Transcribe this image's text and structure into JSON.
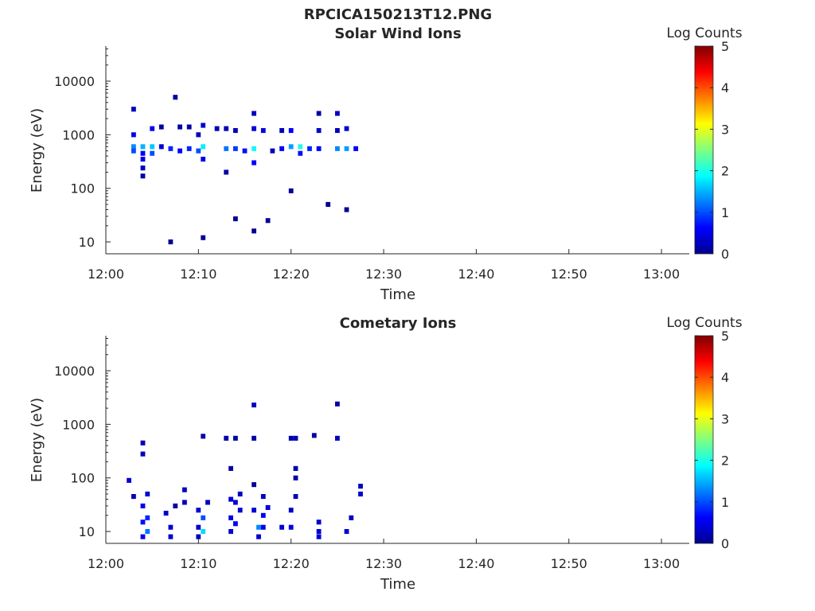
{
  "figure_title": "RPCICA150213T12.PNG",
  "chart_data": [
    {
      "type": "heatmap",
      "title": "Solar Wind Ions",
      "xlabel": "Time",
      "ylabel": "Energy (eV)",
      "yscale": "log",
      "ylim": [
        6,
        45000
      ],
      "xlim": [
        "12:00",
        "13:03"
      ],
      "x_ticks": [
        "12:00",
        "12:10",
        "12:20",
        "12:30",
        "12:40",
        "12:50",
        "13:00"
      ],
      "y_ticks": [
        "10",
        "100",
        "1000",
        "10000"
      ],
      "colorbar": {
        "label": "Log Counts",
        "range": [
          0,
          5
        ],
        "ticks": [
          "0",
          "1",
          "2",
          "3",
          "4",
          "5"
        ],
        "colormap": "jet"
      },
      "cells": [
        {
          "t": "12:03",
          "e": 3000,
          "v": 0.3
        },
        {
          "t": "12:03",
          "e": 1000,
          "v": 0.5
        },
        {
          "t": "12:03",
          "e": 600,
          "v": 1.3
        },
        {
          "t": "12:03",
          "e": 500,
          "v": 1.0
        },
        {
          "t": "12:04",
          "e": 600,
          "v": 1.5
        },
        {
          "t": "12:04",
          "e": 450,
          "v": 0.6
        },
        {
          "t": "12:04",
          "e": 350,
          "v": 0.5
        },
        {
          "t": "12:04",
          "e": 240,
          "v": 0.3
        },
        {
          "t": "12:04",
          "e": 170,
          "v": 0.2
        },
        {
          "t": "12:05",
          "e": 600,
          "v": 1.6
        },
        {
          "t": "12:05",
          "e": 450,
          "v": 1.0
        },
        {
          "t": "12:05",
          "e": 1300,
          "v": 0.5
        },
        {
          "t": "12:06",
          "e": 600,
          "v": 0.4
        },
        {
          "t": "12:06",
          "e": 1400,
          "v": 0.2
        },
        {
          "t": "12:07",
          "e": 550,
          "v": 0.8
        },
        {
          "t": "12:07",
          "e": 10,
          "v": 0.1
        },
        {
          "t": "12:07.5",
          "e": 5000,
          "v": 0.2
        },
        {
          "t": "12:08",
          "e": 1400,
          "v": 0.2
        },
        {
          "t": "12:08",
          "e": 500,
          "v": 0.6
        },
        {
          "t": "12:09",
          "e": 550,
          "v": 0.8
        },
        {
          "t": "12:09",
          "e": 1400,
          "v": 0.2
        },
        {
          "t": "12:10",
          "e": 500,
          "v": 1.0
        },
        {
          "t": "12:10",
          "e": 1000,
          "v": 0.3
        },
        {
          "t": "12:10.5",
          "e": 600,
          "v": 1.8
        },
        {
          "t": "12:10.5",
          "e": 1500,
          "v": 0.4
        },
        {
          "t": "12:10.5",
          "e": 350,
          "v": 0.5
        },
        {
          "t": "12:10.5",
          "e": 12,
          "v": 0.1
        },
        {
          "t": "12:12",
          "e": 1300,
          "v": 0.3
        },
        {
          "t": "12:13",
          "e": 550,
          "v": 1.2
        },
        {
          "t": "12:13",
          "e": 1300,
          "v": 0.3
        },
        {
          "t": "12:13",
          "e": 200,
          "v": 0.2
        },
        {
          "t": "12:14",
          "e": 550,
          "v": 0.9
        },
        {
          "t": "12:14",
          "e": 1200,
          "v": 0.3
        },
        {
          "t": "12:14",
          "e": 27,
          "v": 0.1
        },
        {
          "t": "12:15",
          "e": 500,
          "v": 0.7
        },
        {
          "t": "12:16",
          "e": 550,
          "v": 1.9
        },
        {
          "t": "12:16",
          "e": 1300,
          "v": 0.4
        },
        {
          "t": "12:16",
          "e": 2500,
          "v": 0.3
        },
        {
          "t": "12:16",
          "e": 300,
          "v": 0.6
        },
        {
          "t": "12:16",
          "e": 16,
          "v": 0.1
        },
        {
          "t": "12:17",
          "e": 1200,
          "v": 0.5
        },
        {
          "t": "12:17.5",
          "e": 25,
          "v": 0.1
        },
        {
          "t": "12:18",
          "e": 500,
          "v": 0.3
        },
        {
          "t": "12:19",
          "e": 550,
          "v": 0.6
        },
        {
          "t": "12:19",
          "e": 1200,
          "v": 0.3
        },
        {
          "t": "12:20",
          "e": 600,
          "v": 1.4
        },
        {
          "t": "12:20",
          "e": 1200,
          "v": 0.6
        },
        {
          "t": "12:20",
          "e": 90,
          "v": 0.1
        },
        {
          "t": "12:21",
          "e": 600,
          "v": 2.0
        },
        {
          "t": "12:21",
          "e": 450,
          "v": 0.7
        },
        {
          "t": "12:22",
          "e": 550,
          "v": 0.8
        },
        {
          "t": "12:23",
          "e": 550,
          "v": 0.6
        },
        {
          "t": "12:23",
          "e": 1200,
          "v": 0.4
        },
        {
          "t": "12:23",
          "e": 2500,
          "v": 0.2
        },
        {
          "t": "12:24",
          "e": 50,
          "v": 0.1
        },
        {
          "t": "12:25",
          "e": 550,
          "v": 1.3
        },
        {
          "t": "12:25",
          "e": 2500,
          "v": 0.3
        },
        {
          "t": "12:25",
          "e": 1200,
          "v": 0.3
        },
        {
          "t": "12:26",
          "e": 550,
          "v": 1.4
        },
        {
          "t": "12:26",
          "e": 1300,
          "v": 0.4
        },
        {
          "t": "12:26",
          "e": 40,
          "v": 0.1
        },
        {
          "t": "12:27",
          "e": 550,
          "v": 0.6
        }
      ]
    },
    {
      "type": "heatmap",
      "title": "Cometary Ions",
      "xlabel": "Time",
      "ylabel": "Energy (eV)",
      "yscale": "log",
      "ylim": [
        6,
        45000
      ],
      "xlim": [
        "12:00",
        "13:03"
      ],
      "x_ticks": [
        "12:00",
        "12:10",
        "12:20",
        "12:30",
        "12:40",
        "12:50",
        "13:00"
      ],
      "y_ticks": [
        "10",
        "100",
        "1000",
        "10000"
      ],
      "colorbar": {
        "label": "Log Counts",
        "range": [
          0,
          5
        ],
        "ticks": [
          "0",
          "1",
          "2",
          "3",
          "4",
          "5"
        ],
        "colormap": "jet"
      },
      "cells": [
        {
          "t": "12:02.5",
          "e": 90,
          "v": 0.4
        },
        {
          "t": "12:03",
          "e": 45,
          "v": 0.3
        },
        {
          "t": "12:04",
          "e": 8,
          "v": 0.5
        },
        {
          "t": "12:04",
          "e": 15,
          "v": 0.7
        },
        {
          "t": "12:04",
          "e": 30,
          "v": 0.5
        },
        {
          "t": "12:04",
          "e": 450,
          "v": 0.3
        },
        {
          "t": "12:04",
          "e": 280,
          "v": 0.3
        },
        {
          "t": "12:04.5",
          "e": 10,
          "v": 1.2
        },
        {
          "t": "12:04.5",
          "e": 18,
          "v": 0.8
        },
        {
          "t": "12:04.5",
          "e": 50,
          "v": 0.4
        },
        {
          "t": "12:06.5",
          "e": 22,
          "v": 0.4
        },
        {
          "t": "12:07",
          "e": 8,
          "v": 0.4
        },
        {
          "t": "12:07",
          "e": 12,
          "v": 0.4
        },
        {
          "t": "12:07.5",
          "e": 30,
          "v": 0.2
        },
        {
          "t": "12:08.5",
          "e": 60,
          "v": 0.3
        },
        {
          "t": "12:08.5",
          "e": 35,
          "v": 0.3
        },
        {
          "t": "12:10",
          "e": 8,
          "v": 0.3
        },
        {
          "t": "12:10",
          "e": 12,
          "v": 0.4
        },
        {
          "t": "12:10",
          "e": 25,
          "v": 0.4
        },
        {
          "t": "12:10.5",
          "e": 10,
          "v": 1.7
        },
        {
          "t": "12:10.5",
          "e": 18,
          "v": 1.0
        },
        {
          "t": "12:10.5",
          "e": 600,
          "v": 0.2
        },
        {
          "t": "12:11",
          "e": 35,
          "v": 0.3
        },
        {
          "t": "12:13",
          "e": 550,
          "v": 0.2
        },
        {
          "t": "12:13.5",
          "e": 150,
          "v": 0.2
        },
        {
          "t": "12:13.5",
          "e": 10,
          "v": 0.4
        },
        {
          "t": "12:13.5",
          "e": 18,
          "v": 0.5
        },
        {
          "t": "12:13.5",
          "e": 40,
          "v": 0.4
        },
        {
          "t": "12:14",
          "e": 14,
          "v": 0.6
        },
        {
          "t": "12:14",
          "e": 35,
          "v": 0.4
        },
        {
          "t": "12:14",
          "e": 550,
          "v": 0.2
        },
        {
          "t": "12:14.5",
          "e": 50,
          "v": 0.3
        },
        {
          "t": "12:14.5",
          "e": 25,
          "v": 0.4
        },
        {
          "t": "12:16",
          "e": 25,
          "v": 0.4
        },
        {
          "t": "12:16",
          "e": 2300,
          "v": 0.3
        },
        {
          "t": "12:16",
          "e": 550,
          "v": 0.2
        },
        {
          "t": "12:16",
          "e": 75,
          "v": 0.1
        },
        {
          "t": "12:16.5",
          "e": 12,
          "v": 1.3
        },
        {
          "t": "12:16.5",
          "e": 8,
          "v": 0.4
        },
        {
          "t": "12:17",
          "e": 12,
          "v": 0.5
        },
        {
          "t": "12:17",
          "e": 20,
          "v": 0.5
        },
        {
          "t": "12:17",
          "e": 45,
          "v": 0.3
        },
        {
          "t": "12:17.5",
          "e": 28,
          "v": 0.4
        },
        {
          "t": "12:19",
          "e": 12,
          "v": 0.4
        },
        {
          "t": "12:20",
          "e": 12,
          "v": 0.5
        },
        {
          "t": "12:20",
          "e": 25,
          "v": 0.3
        },
        {
          "t": "12:20",
          "e": 550,
          "v": 0.2
        },
        {
          "t": "12:20.5",
          "e": 150,
          "v": 0.2
        },
        {
          "t": "12:20.5",
          "e": 100,
          "v": 0.2
        },
        {
          "t": "12:20.5",
          "e": 550,
          "v": 0.3
        },
        {
          "t": "12:20.5",
          "e": 45,
          "v": 0.3
        },
        {
          "t": "12:22.5",
          "e": 620,
          "v": 0.2
        },
        {
          "t": "12:23",
          "e": 10,
          "v": 0.4
        },
        {
          "t": "12:23",
          "e": 15,
          "v": 0.4
        },
        {
          "t": "12:23",
          "e": 8,
          "v": 0.4
        },
        {
          "t": "12:25",
          "e": 2400,
          "v": 0.2
        },
        {
          "t": "12:25",
          "e": 550,
          "v": 0.3
        },
        {
          "t": "12:26",
          "e": 10,
          "v": 0.4
        },
        {
          "t": "12:26.5",
          "e": 18,
          "v": 0.3
        },
        {
          "t": "12:27.5",
          "e": 70,
          "v": 0.3
        },
        {
          "t": "12:27.5",
          "e": 50,
          "v": 0.4
        }
      ]
    }
  ]
}
